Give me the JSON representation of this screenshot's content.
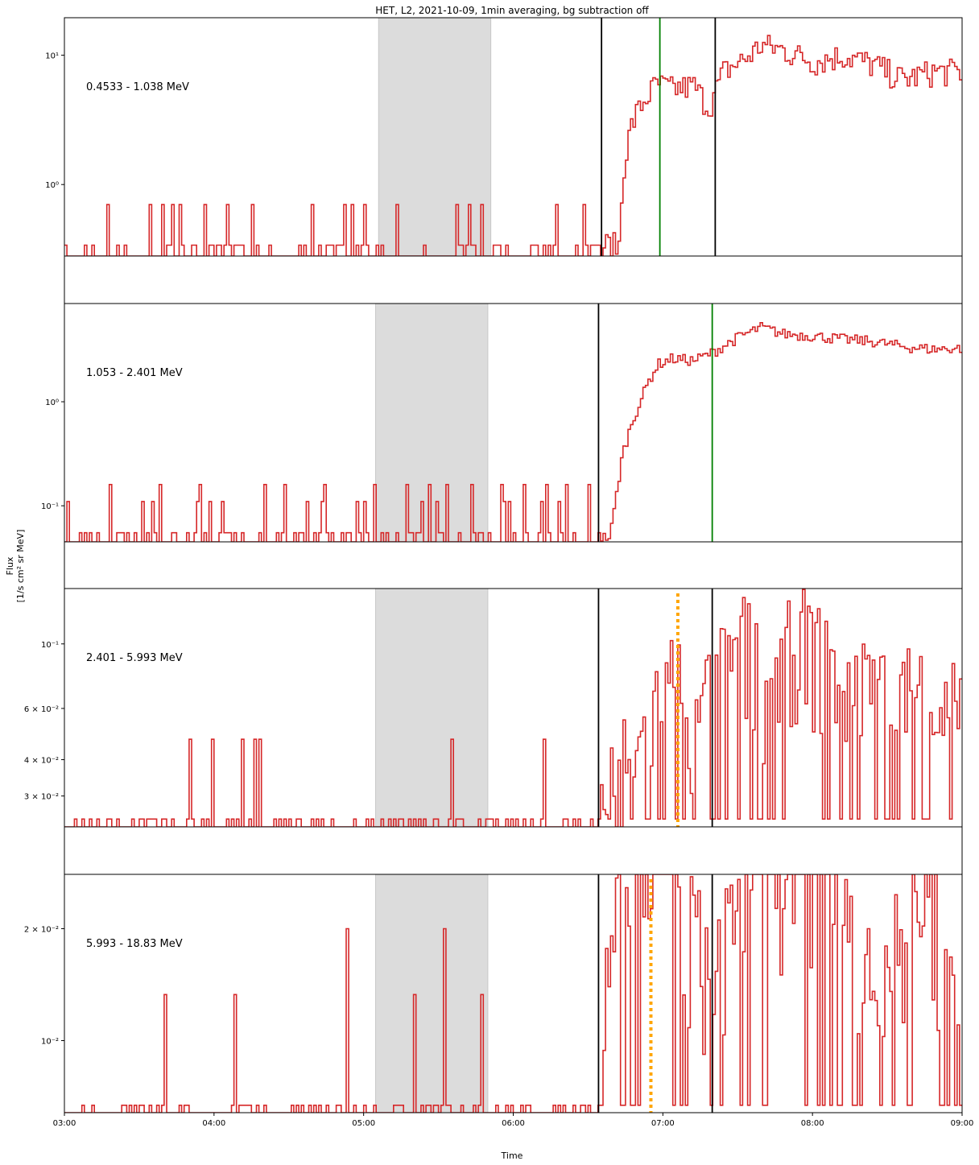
{
  "colors": {
    "flux": "#d62728",
    "shade": "#dcdcdc",
    "vline": "#000000",
    "green": "#008000",
    "orange": "#ffa500"
  },
  "chart_data": {
    "type": "line",
    "title": "HET, L2, 2021-10-09, 1min averaging, bg subtraction off",
    "xlabel": "Time",
    "ylabel_line1": "Flux",
    "ylabel_line2": "[1/s cm² sr MeV]",
    "x_ticks": [
      "03:00",
      "04:00",
      "05:00",
      "06:00",
      "07:00",
      "08:00",
      "09:00"
    ],
    "x_range_hours": [
      3.0,
      9.0
    ],
    "y_scale": "log",
    "grid": false,
    "panels": [
      {
        "channel": "0.4533 - 1.038 MeV",
        "ylim": [
          0.28,
          19.5
        ],
        "yticks": [
          {
            "v": 1.0,
            "label": "10⁰"
          },
          {
            "v": 10.0,
            "label": "10¹"
          }
        ],
        "shaded": [
          5.1,
          5.85
        ],
        "markers": [
          {
            "t": 6.59,
            "style": "black"
          },
          {
            "t": 6.98,
            "style": "green"
          },
          {
            "t": 7.35,
            "style": "black"
          }
        ],
        "base": 0.34,
        "bump": 0.34,
        "spike": 0.7,
        "noise_spikes": [
          3.28,
          3.57,
          3.65,
          3.72,
          3.77,
          3.93,
          4.08,
          4.25,
          4.65,
          4.87,
          4.92,
          5.0,
          5.22,
          5.62,
          5.7,
          5.78,
          6.28,
          6.47
        ],
        "events": [
          {
            "t": 6.6,
            "v": 0.34
          },
          {
            "t": 6.7,
            "v": 0.34
          },
          {
            "t": 6.73,
            "v": 1.4
          },
          {
            "t": 6.78,
            "v": 2.8
          },
          {
            "t": 6.82,
            "v": 3.6
          },
          {
            "t": 6.86,
            "v": 4.3
          },
          {
            "t": 6.9,
            "v": 5.0
          },
          {
            "t": 6.95,
            "v": 6.0
          },
          {
            "t": 7.05,
            "v": 5.5
          },
          {
            "t": 7.2,
            "v": 5.8
          },
          {
            "t": 7.3,
            "v": 4.0
          },
          {
            "t": 7.4,
            "v": 7.5
          },
          {
            "t": 7.55,
            "v": 9.5
          },
          {
            "t": 7.65,
            "v": 12.0
          },
          {
            "t": 7.8,
            "v": 11.0
          },
          {
            "t": 8.0,
            "v": 9.0
          },
          {
            "t": 8.2,
            "v": 10.0
          },
          {
            "t": 8.4,
            "v": 8.5
          },
          {
            "t": 8.6,
            "v": 6.5
          },
          {
            "t": 8.8,
            "v": 7.5
          },
          {
            "t": 9.0,
            "v": 7.5
          }
        ],
        "event_jitter": 0.25
      },
      {
        "channel": "1.053 - 2.401 MeV",
        "ylim": [
          0.045,
          8.8
        ],
        "yticks": [
          {
            "v": 0.1,
            "label": "10⁻¹"
          },
          {
            "v": 1.0,
            "label": "10⁰"
          }
        ],
        "shaded": [
          5.08,
          5.83
        ],
        "markers": [
          {
            "t": 6.57,
            "style": "black"
          },
          {
            "t": 7.33,
            "style": "green"
          }
        ],
        "base": 0.055,
        "bump": 0.11,
        "spike": 0.16,
        "noise_spikes": [
          3.3,
          3.63,
          3.9,
          4.33,
          4.47,
          4.73,
          5.07,
          5.28,
          5.43,
          5.55,
          5.72,
          5.92,
          6.07,
          6.21,
          6.35,
          6.5
        ],
        "events": [
          {
            "t": 6.57,
            "v": 0.05
          },
          {
            "t": 6.64,
            "v": 0.05
          },
          {
            "t": 6.68,
            "v": 0.12
          },
          {
            "t": 6.72,
            "v": 0.3
          },
          {
            "t": 6.78,
            "v": 0.6
          },
          {
            "t": 6.84,
            "v": 1.0
          },
          {
            "t": 6.9,
            "v": 1.6
          },
          {
            "t": 6.96,
            "v": 2.3
          },
          {
            "t": 7.05,
            "v": 2.6
          },
          {
            "t": 7.2,
            "v": 2.5
          },
          {
            "t": 7.33,
            "v": 3.0
          },
          {
            "t": 7.5,
            "v": 4.2
          },
          {
            "t": 7.65,
            "v": 5.2
          },
          {
            "t": 7.8,
            "v": 4.5
          },
          {
            "t": 8.0,
            "v": 4.3
          },
          {
            "t": 8.2,
            "v": 4.0
          },
          {
            "t": 8.4,
            "v": 3.8
          },
          {
            "t": 8.6,
            "v": 3.4
          },
          {
            "t": 8.8,
            "v": 3.2
          },
          {
            "t": 9.0,
            "v": 3.3
          }
        ],
        "event_jitter": 0.12
      },
      {
        "channel": "2.401 - 5.993 MeV",
        "ylim": [
          0.0235,
          0.155
        ],
        "yticks": [
          {
            "v": 0.1,
            "label": "10⁻¹"
          },
          {
            "v": 0.06,
            "label": "6 × 10⁻²"
          },
          {
            "v": 0.04,
            "label": "4 × 10⁻²"
          },
          {
            "v": 0.03,
            "label": "3 × 10⁻²"
          }
        ],
        "shaded": [
          5.08,
          5.83
        ],
        "markers": [
          {
            "t": 6.57,
            "style": "black"
          },
          {
            "t": 7.1,
            "style": "orange"
          },
          {
            "t": 7.33,
            "style": "black"
          }
        ],
        "base": 0.025,
        "bump": 0.025,
        "spike": 0.047,
        "noise_spikes": [
          3.83,
          3.98,
          4.18,
          4.27,
          4.3,
          5.58,
          6.2
        ],
        "events": [
          {
            "t": 6.57,
            "v": 0.025
          },
          {
            "t": 6.73,
            "v": 0.025
          },
          {
            "t": 6.74,
            "v": 0.047
          },
          {
            "t": 6.76,
            "v": 0.025
          },
          {
            "t": 6.9,
            "v": 0.047
          },
          {
            "t": 7.1,
            "v": 0.07
          },
          {
            "t": 7.2,
            "v": 0.04
          },
          {
            "t": 7.33,
            "v": 0.06
          },
          {
            "t": 7.5,
            "v": 0.09
          },
          {
            "t": 7.7,
            "v": 0.06
          },
          {
            "t": 7.9,
            "v": 0.09
          },
          {
            "t": 8.1,
            "v": 0.07
          },
          {
            "t": 8.3,
            "v": 0.06
          },
          {
            "t": 8.5,
            "v": 0.055
          },
          {
            "t": 8.7,
            "v": 0.06
          },
          {
            "t": 8.9,
            "v": 0.05
          },
          {
            "t": 9.0,
            "v": 0.07
          }
        ],
        "event_jitter": 1.0
      },
      {
        "channel": "5.993 - 18.83 MeV",
        "ylim": [
          0.0064,
          0.028
        ],
        "yticks": [
          {
            "v": 0.01,
            "label": "10⁻²"
          },
          {
            "v": 0.02,
            "label": "2 × 10⁻²"
          }
        ],
        "shaded": [
          5.08,
          5.83
        ],
        "markers": [
          {
            "t": 6.57,
            "style": "black"
          },
          {
            "t": 6.92,
            "style": "orange"
          },
          {
            "t": 7.33,
            "style": "black"
          }
        ],
        "base": 0.0067,
        "bump": 0.0067,
        "spike": 0.0133,
        "big_spike": 0.02,
        "noise_spikes": [
          3.67,
          4.13,
          5.33,
          5.78
        ],
        "big_spikes": [
          4.88,
          5.53
        ],
        "events": [
          {
            "t": 6.57,
            "v": 0.0067
          },
          {
            "t": 6.62,
            "v": 0.02
          },
          {
            "t": 6.72,
            "v": 0.02
          },
          {
            "t": 6.92,
            "v": 0.027
          },
          {
            "t": 7.08,
            "v": 0.02
          },
          {
            "t": 7.3,
            "v": 0.013
          },
          {
            "t": 7.5,
            "v": 0.02
          },
          {
            "t": 7.9,
            "v": 0.027
          },
          {
            "t": 8.2,
            "v": 0.02
          },
          {
            "t": 8.5,
            "v": 0.013
          },
          {
            "t": 8.7,
            "v": 0.02
          },
          {
            "t": 9.0,
            "v": 0.013
          }
        ],
        "event_jitter": 1.0
      }
    ]
  }
}
